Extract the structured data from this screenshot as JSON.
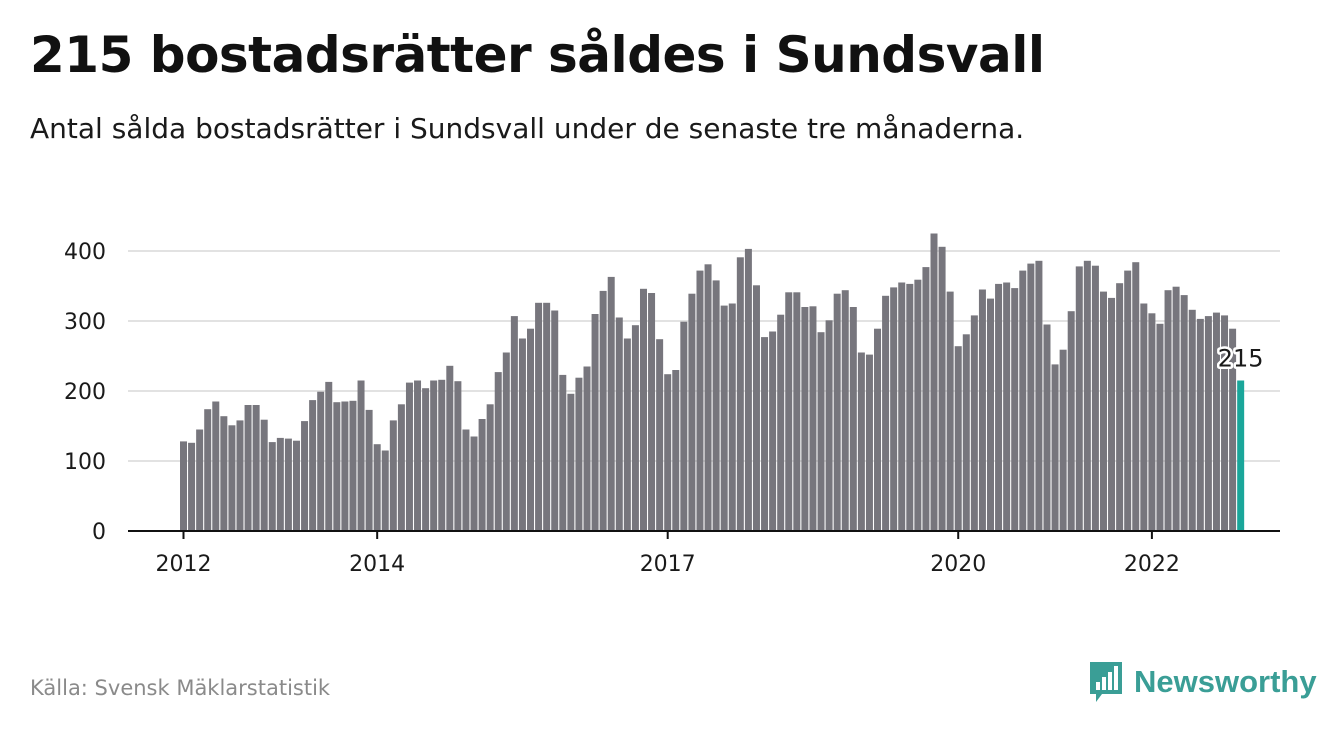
{
  "title": "215 bostadsrätter såldes i Sundsvall",
  "subtitle": "Antal sålda bostadsrätter i Sundsvall under de senaste tre månaderna.",
  "source": "Källa: Svensk Mäklarstatistik",
  "brand": {
    "name": "Newsworthy",
    "icon": "newsworthy-logo-icon",
    "color": "#3a9e96"
  },
  "colors": {
    "bar": "#77767d",
    "highlight": "#1aa69a",
    "grid": "#d9d9d9",
    "axis": "#111111"
  },
  "chart_data": {
    "type": "bar",
    "ylim": [
      0,
      430
    ],
    "yticks": [
      0,
      100,
      200,
      300,
      400
    ],
    "xticks": [
      {
        "label": "2012",
        "index": 0
      },
      {
        "label": "2014",
        "index": 24
      },
      {
        "label": "2017",
        "index": 60
      },
      {
        "label": "2020",
        "index": 96
      },
      {
        "label": "2022",
        "index": 120
      }
    ],
    "grid": true,
    "highlight_label": "215",
    "values": [
      128,
      126,
      145,
      174,
      185,
      164,
      151,
      158,
      180,
      180,
      159,
      127,
      133,
      132,
      129,
      157,
      187,
      199,
      213,
      184,
      185,
      186,
      215,
      173,
      124,
      115,
      158,
      181,
      212,
      215,
      204,
      215,
      216,
      236,
      214,
      145,
      135,
      160,
      181,
      227,
      255,
      307,
      275,
      289,
      326,
      326,
      315,
      223,
      196,
      219,
      235,
      310,
      343,
      363,
      305,
      275,
      294,
      346,
      340,
      274,
      224,
      230,
      299,
      339,
      372,
      381,
      358,
      322,
      325,
      391,
      403,
      351,
      277,
      285,
      309,
      341,
      341,
      320,
      321,
      284,
      301,
      339,
      344,
      320,
      255,
      252,
      289,
      336,
      348,
      355,
      353,
      359,
      377,
      425,
      406,
      342,
      264,
      281,
      308,
      345,
      332,
      353,
      355,
      347,
      372,
      382,
      386,
      295,
      238,
      259,
      314,
      378,
      386,
      379,
      342,
      333,
      354,
      372,
      384,
      325,
      311,
      296,
      344,
      349,
      337,
      316,
      303,
      307,
      312,
      308,
      289,
      215
    ]
  }
}
